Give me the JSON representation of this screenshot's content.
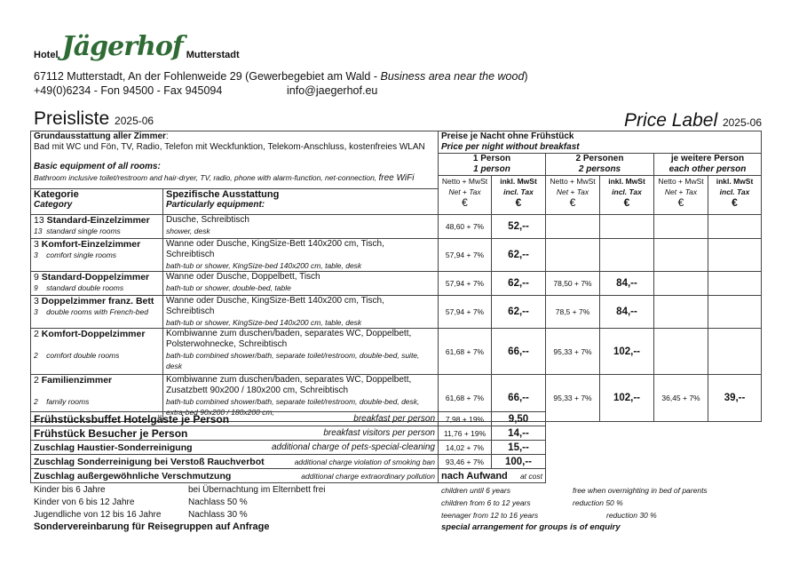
{
  "header": {
    "hotel_prefix": "Hotel",
    "logo_text": "Jägerhof",
    "hotel_suffix": "Mutterstadt",
    "address": "67112 Mutterstadt, An der Fohlenweide 29 (Gewerbegebiet am Wald - ",
    "address_en": "Business area near the wood",
    "address_close": ")",
    "phone": "+49(0)6234 - Fon 94500 - Fax 945094",
    "email": "info@jaegerhof.eu",
    "title_de": "Preisliste",
    "title_en": "Price Label",
    "date": "2025-06",
    "logo_color": "#2f6b34"
  },
  "table": {
    "basic_de_title": "Grundausstattung aller Zimmer",
    "basic_de": "Bad mit WC und Fön, TV, Radio, Telefon mit Weckfunktion, Telekom-Anschluss, kostenfreies WLAN",
    "basic_en_title": "Basic equipment of all rooms:",
    "basic_en": "Bathroom inclusive toilet/restroom and hair-dryer, TV, radio, phone with alarm-function, net-connection, ",
    "basic_en_wifi": "free WiFi",
    "prices_de": "Preise je Nacht ohne Frühstück",
    "prices_en": "Price per night without breakfast",
    "groups": [
      {
        "de": "1 Person",
        "en": "1 person"
      },
      {
        "de": "2 Personen",
        "en": "2 persons"
      },
      {
        "de": "je weitere Person",
        "en": "each other person"
      }
    ],
    "net_de": "Netto + MwSt",
    "net_en": "Net + Tax",
    "gross_de": "inkl. MwSt",
    "gross_en": "incl. Tax",
    "currency": "€",
    "col_category_de": "Kategorie",
    "col_category_en": "Category",
    "col_equipment_de": "Spezifische Ausstattung",
    "col_equipment_en": "Particularly equipment:",
    "rows": [
      {
        "count": "13",
        "name": "Standard-Einzelzimmer",
        "name_en": "13  standard single rooms",
        "equip_de": "Dusche, Schreibtisch",
        "equip_en": "shower, desk",
        "p1_net": "48,60 + 7%",
        "p1": "52,--",
        "p2_net": "",
        "p2": "",
        "p3_net": "",
        "p3": ""
      },
      {
        "count": "3",
        "name": "Komfort-Einzelzimmer",
        "name_en": "3    comfort single rooms",
        "equip_de": "Wanne oder Dusche, KingSize-Bett 140x200 cm, Tisch, Schreibtisch",
        "equip_en": "bath-tub or shower, KingSize-bed 140x200 cm, table, desk",
        "p1_net": "57,94 + 7%",
        "p1": "62,--",
        "p2_net": "",
        "p2": "",
        "p3_net": "",
        "p3": ""
      },
      {
        "count": "9",
        "name": "Standard-Doppelzimmer",
        "name_en": "9    standard double rooms",
        "equip_de": "Wanne oder Dusche, Doppelbett, Tisch",
        "equip_en": "bath-tub or shower, double-bed, table",
        "p1_net": "57,94 + 7%",
        "p1": "62,--",
        "p2_net": "78,50 + 7%",
        "p2": "84,--",
        "p3_net": "",
        "p3": ""
      },
      {
        "count": "3",
        "name": "Doppelzimmer franz. Bett",
        "name_en": "3    double rooms with French-bed",
        "equip_de": "Wanne oder Dusche, KingSize-Bett 140x200 cm, Tisch, Schreibtisch",
        "equip_en": "bath-tub or shower, KingSize-bed 140x200 cm, table, desk",
        "p1_net": "57,94 + 7%",
        "p1": "62,--",
        "p2_net": "78,5 + 7%",
        "p2": "84,--",
        "p3_net": "",
        "p3": ""
      },
      {
        "count": "2",
        "name": "Komfort-Doppelzimmer",
        "name_en": "2    comfort double rooms",
        "equip_de": "Kombiwanne zum duschen/baden, separates WC, Doppelbett, Polsterwohnecke, Schreibtisch",
        "equip_en": "bath-tub combined shower/bath, separate toilet/restroom, double-bed, suite, desk",
        "p1_net": "61,68 + 7%",
        "p1": "66,--",
        "p2_net": "95,33 + 7%",
        "p2": "102,--",
        "p3_net": "",
        "p3": ""
      },
      {
        "count": "2",
        "name": "Familienzimmer",
        "name_en": "2    family rooms",
        "equip_de": "Kombiwanne zum duschen/baden, separates WC, Doppelbett, Zusatzbett 90x200 / 180x200 cm, Schreibtisch",
        "equip_en": "bath-tub combined shower/bath, separate toilet/restroom, double-bed, desk, extra-bed 90x200 / 180x200 cm,",
        "p1_net": "61,68 + 7%",
        "p1": "66,--",
        "p2_net": "95,33 + 7%",
        "p2": "102,--",
        "p3_net": "36,45 + 7%",
        "p3": "39,--"
      }
    ]
  },
  "extras": [
    {
      "de": "Frühstücksbuffet Hotelgäste je Person",
      "en": "breakfast per person",
      "net": "7,98 + 19%",
      "price": "9,50"
    },
    {
      "de": "Frühstück Besucher je Person",
      "en": "breakfast visitors per person",
      "net": "11,76 + 19%",
      "price": "14,--"
    },
    {
      "de": "Zuschlag Haustier-Sonderreinigung",
      "en": "additional charge of pets-special-cleaning",
      "net": "14,02 + 7%",
      "price": "15,--"
    },
    {
      "de": "Zuschlag Sonderreinigung bei Verstoß Rauchverbot",
      "en": "additional charge violation of smoking ban",
      "net": "93,46 + 7%",
      "price": "100,--"
    },
    {
      "de": "Zuschlag außergewöhnliche Verschmutzung",
      "en": "additional charge extraordinary pollution",
      "net": "nach Aufwand",
      "price": "at cost"
    }
  ],
  "notes": [
    {
      "de": "Kinder bis 6 Jahre",
      "de_val": "bei Übernachtung im Elternbett frei",
      "en": "children until 6 years",
      "en_val": "free when overnighting in bed of parents"
    },
    {
      "de": "Kinder von 6 bis 12 Jahre",
      "de_val": "Nachlass 50 %",
      "en": "children from 6 to 12 years",
      "en_val": "reduction 50 %"
    },
    {
      "de": "Jugendliche von 12 bis 16 Jahre",
      "de_val": "Nachlass 30 %",
      "en": "teenager from 12 to 16 years",
      "en_val": "reduction 30 %"
    }
  ],
  "groups_note_de": "Sondervereinbarung für Reisegruppen auf Anfrage",
  "groups_note_en": "special arrangement for groups is of enquiry"
}
